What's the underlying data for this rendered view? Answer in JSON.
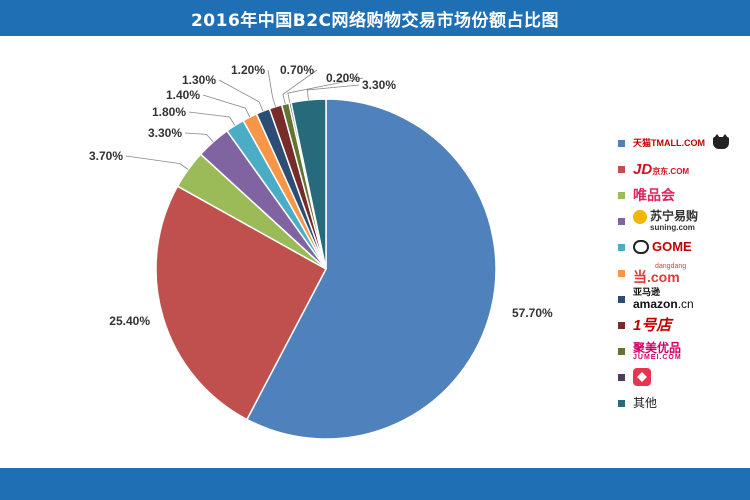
{
  "title": "2016年中国B2C网络购物交易市场份额占比图",
  "chart_data": {
    "type": "pie",
    "title": "2016年中国B2C网络购物交易市场份额占比图",
    "slices": [
      {
        "name": "天猫 TMALL.COM",
        "value": 57.7,
        "label": "57.70%",
        "color": "#4f81bd",
        "icon": "tmall-logo"
      },
      {
        "name": "JD.COM 京东",
        "value": 25.4,
        "label": "25.40%",
        "color": "#c0504d",
        "icon": "jd-logo"
      },
      {
        "name": "唯品会",
        "value": 3.7,
        "label": "3.70%",
        "color": "#9bbb59",
        "icon": "vip-logo"
      },
      {
        "name": "苏宁易购 suning.com",
        "value": 3.3,
        "label": "3.30%",
        "color": "#8064a2",
        "icon": "suning-logo"
      },
      {
        "name": "GOME",
        "value": 1.8,
        "label": "1.80%",
        "color": "#4bacc6",
        "icon": "gome-logo"
      },
      {
        "name": "dangdang .com",
        "value": 1.4,
        "label": "1.40%",
        "color": "#f79646",
        "icon": "dangdang-logo"
      },
      {
        "name": "亚马逊 amazon.cn",
        "value": 1.3,
        "label": "1.30%",
        "color": "#2c4d75",
        "icon": "amazon-logo"
      },
      {
        "name": "1号店",
        "value": 1.2,
        "label": "1.20%",
        "color": "#772c2a",
        "icon": "yhd-logo"
      },
      {
        "name": "聚美优品 JUMEI.COM",
        "value": 0.7,
        "label": "0.70%",
        "color": "#5f7530",
        "icon": "jumei-logo"
      },
      {
        "name": "",
        "value": 0.2,
        "label": "0.20%",
        "color": "#4d3b62",
        "icon": "mogujie-logo"
      },
      {
        "name": "其他",
        "value": 3.3,
        "label": "3.30%",
        "color": "#276a7c",
        "icon": "other"
      }
    ],
    "legend_position": "right"
  },
  "legend": {
    "tmall": "TMALL.COM",
    "tmall_cn": "天猫",
    "jd": "JD",
    "jd_cn": "京东",
    "jd_sub": ".COM",
    "vip": "唯品会",
    "suning_cn": "苏宁易购",
    "suning": "suning.com",
    "gome": "GOME",
    "dangdang": "dangdang",
    "dangdang_com": ".com",
    "amazon_cn": "亚马逊",
    "amazon": "amazon",
    "amazon_tld": ".cn",
    "yhd": "1号店",
    "jumei_cn": "聚美优品",
    "jumei": "JUMEI.COM",
    "other": "其他"
  }
}
